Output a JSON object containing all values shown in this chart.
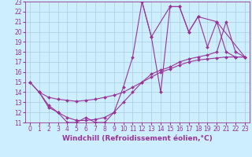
{
  "bg_color": "#cceeff",
  "grid_color": "#aaccdd",
  "line_color": "#993399",
  "marker": "D",
  "markersize": 2.0,
  "linewidth": 0.8,
  "xlim": [
    -0.5,
    23.5
  ],
  "ylim": [
    11,
    23
  ],
  "xticks": [
    0,
    1,
    2,
    3,
    4,
    5,
    6,
    7,
    8,
    9,
    10,
    11,
    12,
    13,
    14,
    15,
    16,
    17,
    18,
    19,
    20,
    21,
    22,
    23
  ],
  "yticks": [
    11,
    12,
    13,
    14,
    15,
    16,
    17,
    18,
    19,
    20,
    21,
    22,
    23
  ],
  "tick_fontsize": 5.5,
  "xlabel": "Windchill (Refroidissement éolien,°C)",
  "xlabel_fontsize": 6.5,
  "line1_x": [
    0,
    1,
    2,
    3,
    4,
    5,
    6,
    7,
    8,
    9,
    10,
    11,
    12,
    13,
    15,
    16,
    17,
    18,
    20,
    23
  ],
  "line1_y": [
    15,
    14,
    12.5,
    12,
    11,
    11,
    11.5,
    11,
    11,
    12,
    14.5,
    17.5,
    23,
    19.5,
    22.5,
    22.5,
    20,
    21.5,
    21,
    17.5
  ],
  "line2_x": [
    0,
    1,
    2,
    3,
    4,
    5,
    6,
    7,
    8,
    9,
    10,
    11,
    12,
    13,
    14,
    15,
    16,
    17,
    18,
    19,
    20,
    21,
    22,
    23
  ],
  "line2_y": [
    15,
    14,
    13.5,
    13.3,
    13.2,
    13.1,
    13.2,
    13.3,
    13.5,
    13.7,
    14.0,
    14.5,
    15.0,
    15.5,
    16.0,
    16.3,
    16.7,
    17.0,
    17.2,
    17.3,
    17.4,
    17.5,
    17.5,
    17.5
  ],
  "line3_x": [
    1,
    2,
    3,
    4,
    5,
    6,
    7,
    8,
    9,
    10,
    11,
    12,
    13,
    14,
    15,
    16,
    17,
    18,
    19,
    20,
    21,
    22,
    23
  ],
  "line3_y": [
    14,
    12.7,
    12.0,
    11.5,
    11.2,
    11.2,
    11.3,
    11.5,
    12.0,
    13.0,
    14.0,
    15.0,
    15.8,
    16.2,
    16.5,
    17.0,
    17.3,
    17.5,
    17.7,
    18.0,
    21.0,
    18.0,
    17.5
  ],
  "line4_x": [
    12,
    13,
    14,
    15,
    16,
    17,
    18,
    19,
    20,
    21,
    22,
    23
  ],
  "line4_y": [
    23,
    19.5,
    14,
    22.5,
    22.5,
    20,
    21.5,
    18.5,
    21,
    18,
    17.5,
    17.5
  ]
}
